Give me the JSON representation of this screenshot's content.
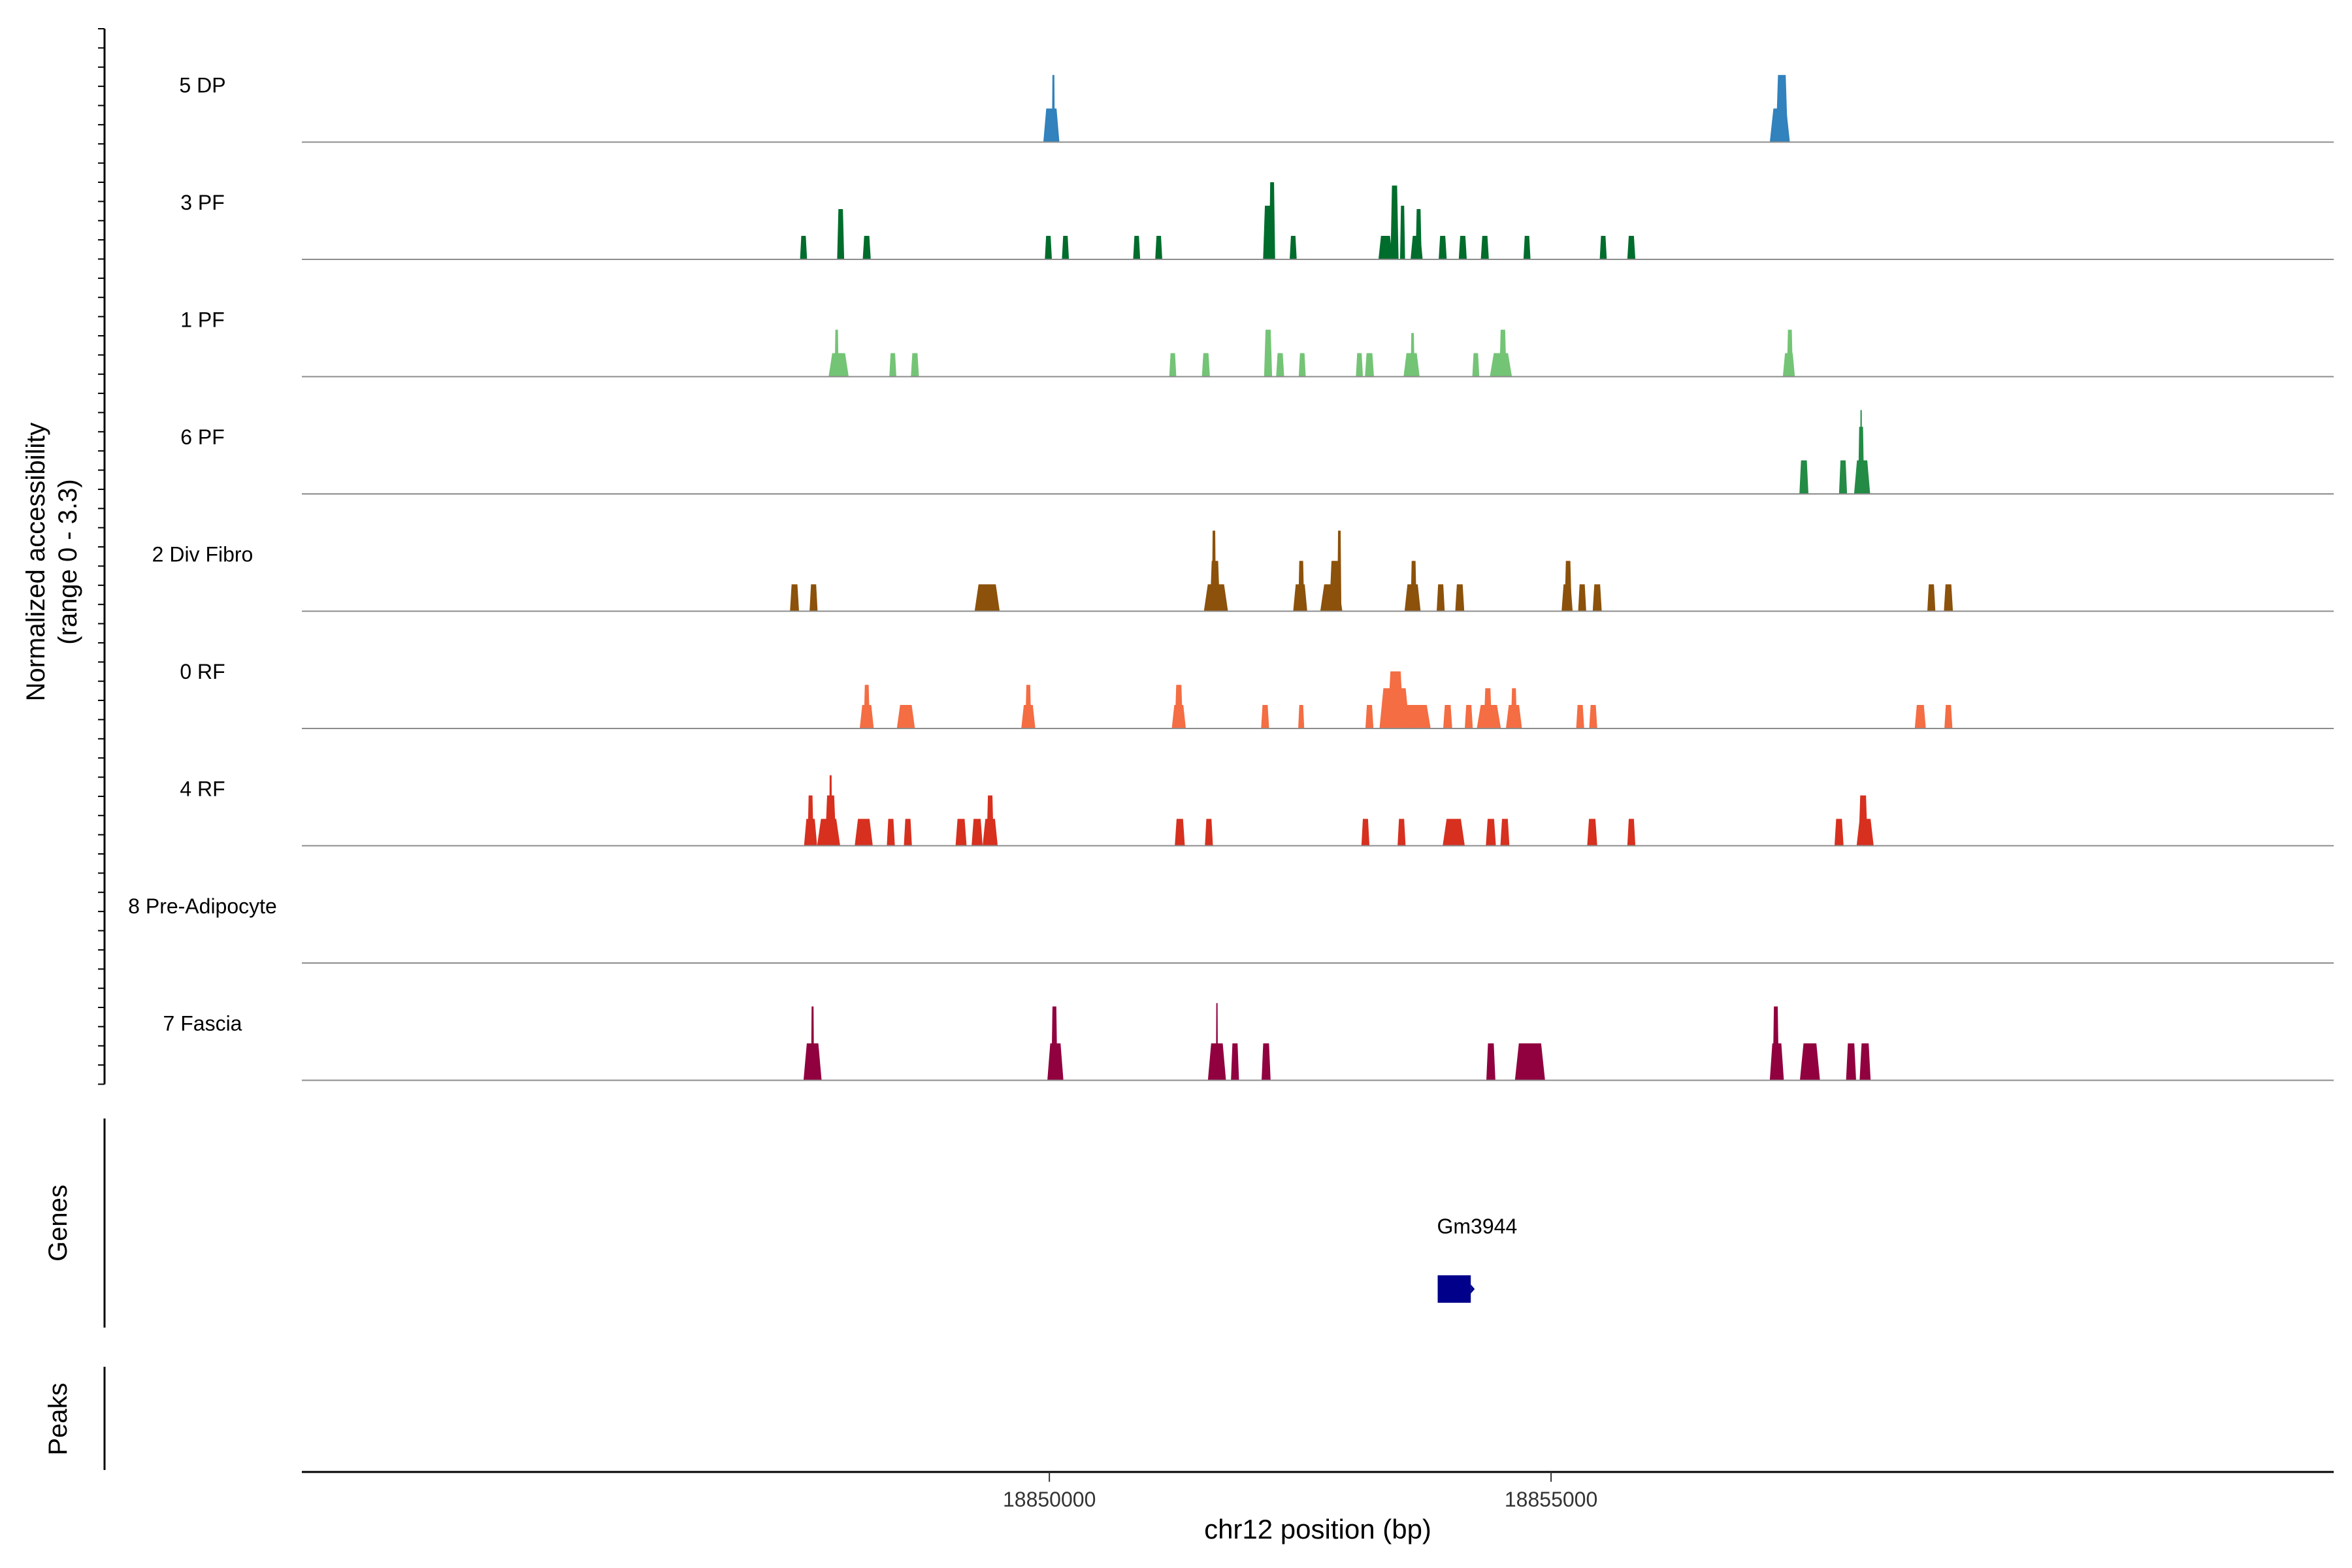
{
  "chart_data": {
    "type": "area",
    "y_axis_title_line1": "Normalized accessibility",
    "y_axis_title_line2": "(range 0 - 3.3)",
    "x_axis_title": "chr12 position (bp)",
    "x_range": [
      18842550,
      18862800
    ],
    "x_ticks": [
      18850000,
      18855000
    ],
    "x_tick_labels": [
      "18850000",
      "18855000"
    ],
    "y_range_per_track": [
      0,
      3.3
    ],
    "genes_label": "Genes",
    "peaks_label": "Peaks",
    "genes": [
      {
        "name": "Gm3944",
        "start": 18853870,
        "end": 18854200,
        "strand": "+",
        "color": "#00008B"
      }
    ],
    "tracks": [
      {
        "name": "5 DP",
        "color": "#3182BD",
        "peaks": [
          [
            18850020,
            160,
            1.0
          ],
          [
            18850040,
            30,
            2.0
          ],
          [
            18857280,
            200,
            1.0
          ],
          [
            18857300,
            120,
            2.0
          ]
        ]
      },
      {
        "name": "3 PF",
        "color": "#006D2C",
        "peaks": [
          [
            18847550,
            70,
            0.7
          ],
          [
            18847920,
            70,
            1.5
          ],
          [
            18848180,
            80,
            0.7
          ],
          [
            18849990,
            70,
            0.7
          ],
          [
            18850160,
            70,
            0.7
          ],
          [
            18850870,
            70,
            0.7
          ],
          [
            18851090,
            70,
            0.7
          ],
          [
            18852180,
            100,
            1.6
          ],
          [
            18852220,
            60,
            2.3
          ],
          [
            18852430,
            70,
            0.7
          ],
          [
            18853350,
            140,
            0.7
          ],
          [
            18853440,
            80,
            2.2
          ],
          [
            18853520,
            50,
            1.6
          ],
          [
            18853660,
            120,
            0.7
          ],
          [
            18853680,
            60,
            1.5
          ],
          [
            18853920,
            80,
            0.7
          ],
          [
            18854120,
            80,
            0.7
          ],
          [
            18854340,
            80,
            0.7
          ],
          [
            18854760,
            70,
            0.7
          ],
          [
            18855520,
            70,
            0.7
          ],
          [
            18855800,
            80,
            0.7
          ]
        ]
      },
      {
        "name": "1 PF",
        "color": "#74C476",
        "peaks": [
          [
            18847900,
            200,
            0.7
          ],
          [
            18847880,
            40,
            1.4
          ],
          [
            18848440,
            70,
            0.7
          ],
          [
            18848660,
            80,
            0.7
          ],
          [
            18851230,
            70,
            0.7
          ],
          [
            18851560,
            80,
            0.7
          ],
          [
            18852180,
            80,
            1.4
          ],
          [
            18852300,
            80,
            0.7
          ],
          [
            18852520,
            70,
            0.7
          ],
          [
            18853090,
            70,
            0.7
          ],
          [
            18853190,
            90,
            0.7
          ],
          [
            18853610,
            160,
            0.7
          ],
          [
            18853620,
            40,
            1.3
          ],
          [
            18854250,
            70,
            0.7
          ],
          [
            18854500,
            220,
            0.7
          ],
          [
            18854520,
            70,
            1.4
          ],
          [
            18857370,
            120,
            0.7
          ],
          [
            18857380,
            60,
            1.4
          ]
        ]
      },
      {
        "name": "6 PF",
        "color": "#238B45",
        "peaks": [
          [
            18857520,
            90,
            1.0
          ],
          [
            18857910,
            80,
            1.0
          ],
          [
            18858100,
            160,
            1.0
          ],
          [
            18858090,
            60,
            2.0
          ],
          [
            18858090,
            20,
            2.5
          ]
        ]
      },
      {
        "name": "2 Div Fibro",
        "color": "#8C510A",
        "peaks": [
          [
            18847460,
            90,
            0.8
          ],
          [
            18847650,
            80,
            0.8
          ],
          [
            18849380,
            250,
            0.8
          ],
          [
            18851660,
            240,
            0.8
          ],
          [
            18851650,
            100,
            1.5
          ],
          [
            18851640,
            40,
            2.4
          ],
          [
            18852500,
            140,
            0.8
          ],
          [
            18852510,
            60,
            1.5
          ],
          [
            18852810,
            220,
            0.8
          ],
          [
            18852850,
            120,
            1.5
          ],
          [
            18852890,
            40,
            2.4
          ],
          [
            18853620,
            160,
            0.8
          ],
          [
            18853630,
            60,
            1.5
          ],
          [
            18853900,
            80,
            0.8
          ],
          [
            18854090,
            90,
            0.8
          ],
          [
            18855160,
            110,
            0.8
          ],
          [
            18855170,
            70,
            1.5
          ],
          [
            18855310,
            80,
            0.8
          ],
          [
            18855460,
            90,
            0.8
          ],
          [
            18858790,
            80,
            0.8
          ],
          [
            18858960,
            90,
            0.8
          ]
        ]
      },
      {
        "name": "0 RF",
        "color": "#F46D43",
        "peaks": [
          [
            18848180,
            140,
            0.7
          ],
          [
            18848180,
            60,
            1.3
          ],
          [
            18848570,
            180,
            0.7
          ],
          [
            18849790,
            140,
            0.7
          ],
          [
            18849790,
            60,
            1.3
          ],
          [
            18851290,
            140,
            0.7
          ],
          [
            18851290,
            80,
            1.3
          ],
          [
            18852150,
            80,
            0.7
          ],
          [
            18852510,
            60,
            0.7
          ],
          [
            18853190,
            80,
            0.7
          ],
          [
            18853600,
            400,
            0.7
          ],
          [
            18853440,
            300,
            1.2
          ],
          [
            18853450,
            160,
            1.7
          ],
          [
            18853970,
            90,
            0.7
          ],
          [
            18854180,
            80,
            0.7
          ],
          [
            18854380,
            240,
            0.7
          ],
          [
            18854370,
            80,
            1.2
          ],
          [
            18854630,
            160,
            0.7
          ],
          [
            18854630,
            60,
            1.2
          ],
          [
            18855290,
            80,
            0.7
          ],
          [
            18855420,
            80,
            0.7
          ],
          [
            18858680,
            110,
            0.7
          ],
          [
            18858960,
            80,
            0.7
          ]
        ]
      },
      {
        "name": "4 RF",
        "color": "#D7301F",
        "peaks": [
          [
            18847620,
            130,
            0.8
          ],
          [
            18847620,
            60,
            1.5
          ],
          [
            18847800,
            230,
            0.8
          ],
          [
            18847820,
            110,
            1.5
          ],
          [
            18847820,
            30,
            2.1
          ],
          [
            18848150,
            180,
            0.8
          ],
          [
            18848420,
            80,
            0.8
          ],
          [
            18848590,
            80,
            0.8
          ],
          [
            18849120,
            110,
            0.8
          ],
          [
            18849280,
            110,
            0.8
          ],
          [
            18849410,
            150,
            0.8
          ],
          [
            18849410,
            70,
            1.5
          ],
          [
            18851300,
            100,
            0.8
          ],
          [
            18851590,
            80,
            0.8
          ],
          [
            18853150,
            80,
            0.8
          ],
          [
            18853510,
            80,
            0.8
          ],
          [
            18854030,
            220,
            0.8
          ],
          [
            18854400,
            100,
            0.8
          ],
          [
            18854540,
            90,
            0.8
          ],
          [
            18855410,
            100,
            0.8
          ],
          [
            18855800,
            80,
            0.8
          ],
          [
            18857870,
            90,
            0.8
          ],
          [
            18858130,
            170,
            0.8
          ],
          [
            18858110,
            90,
            1.5
          ]
        ]
      },
      {
        "name": "8 Pre-Adipocyte",
        "color": "#666666",
        "peaks": []
      },
      {
        "name": "7 Fascia",
        "color": "#91003F",
        "peaks": [
          [
            18847640,
            180,
            1.1
          ],
          [
            18847640,
            30,
            2.2
          ],
          [
            18850060,
            160,
            1.1
          ],
          [
            18850050,
            60,
            2.2
          ],
          [
            18851670,
            180,
            1.1
          ],
          [
            18851670,
            20,
            2.3
          ],
          [
            18851850,
            80,
            1.1
          ],
          [
            18852160,
            90,
            1.1
          ],
          [
            18854400,
            90,
            1.1
          ],
          [
            18854790,
            300,
            1.1
          ],
          [
            18857250,
            140,
            1.1
          ],
          [
            18857240,
            60,
            2.2
          ],
          [
            18857580,
            200,
            1.1
          ],
          [
            18857990,
            100,
            1.1
          ],
          [
            18858130,
            110,
            1.1
          ]
        ]
      }
    ]
  }
}
